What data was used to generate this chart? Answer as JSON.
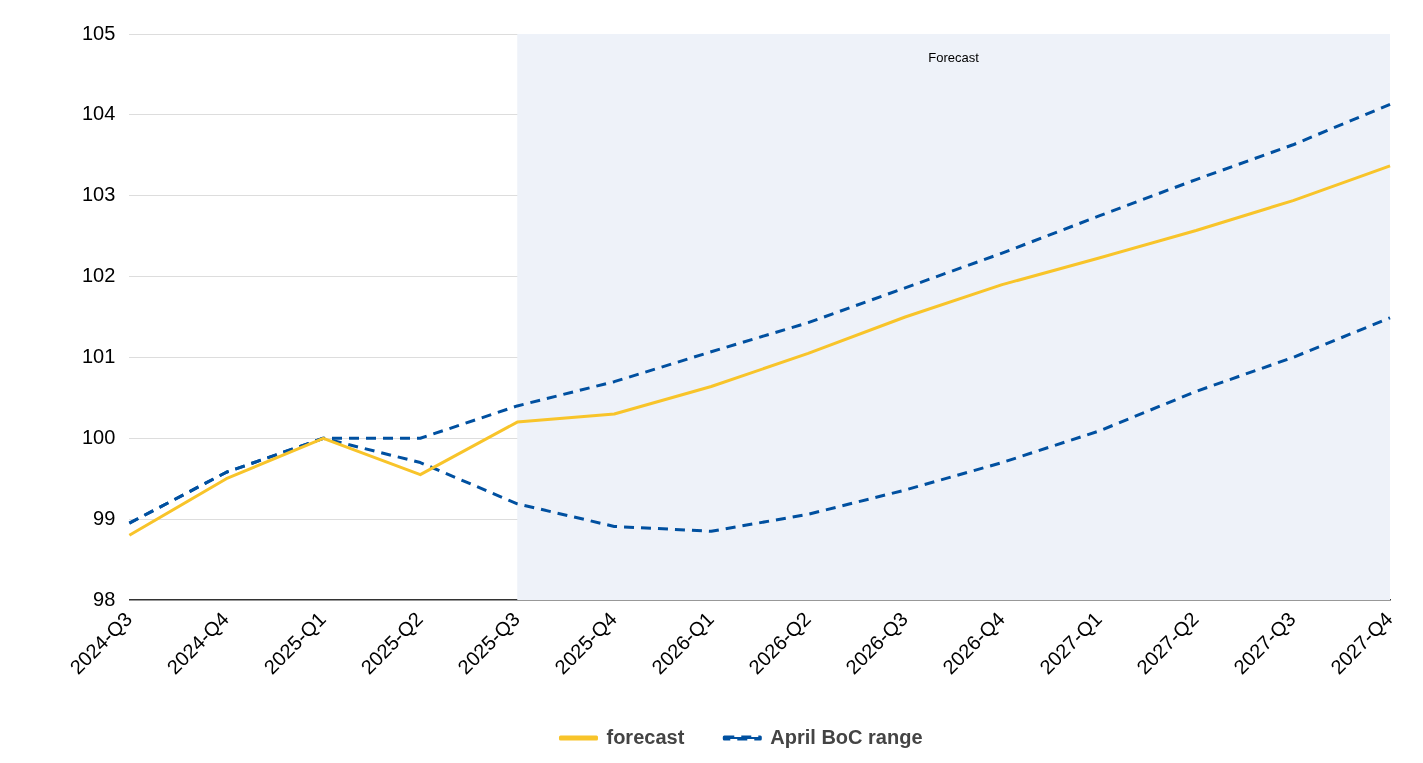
{
  "chart_data": {
    "type": "line",
    "categories": [
      "2024-Q3",
      "2024-Q4",
      "2025-Q1",
      "2025-Q2",
      "2025-Q3",
      "2025-Q4",
      "2026-Q1",
      "2026-Q2",
      "2026-Q3",
      "2026-Q4",
      "2027-Q1",
      "2027-Q2",
      "2027-Q3",
      "2027-Q4"
    ],
    "series": [
      {
        "name": "forecast",
        "color": "#f8c42a",
        "line_style": "solid",
        "values": [
          98.8,
          99.5,
          100.0,
          99.55,
          100.2,
          100.3,
          100.64,
          101.05,
          101.5,
          101.9,
          102.23,
          102.57,
          102.94,
          103.37
        ]
      },
      {
        "name": "April BoC range",
        "color": "#0050a0",
        "line_style": "dashed",
        "values": [
          98.95,
          99.58,
          100.0,
          100.0,
          100.4,
          100.7,
          101.07,
          101.43,
          101.86,
          102.29,
          102.75,
          103.2,
          103.63,
          104.13
        ]
      },
      {
        "color": "#0050a0",
        "line_style": "dashed",
        "values": [
          98.95,
          99.58,
          100.0,
          99.7,
          99.19,
          98.91,
          98.85,
          99.06,
          99.36,
          99.7,
          100.09,
          100.58,
          101.0,
          101.49
        ]
      }
    ],
    "ylim": [
      98,
      105
    ],
    "yticks": [
      98,
      99,
      100,
      101,
      102,
      103,
      104,
      105
    ],
    "grid": "y",
    "legend": "bottom",
    "marker": "none",
    "bands": [
      {
        "axis": "x",
        "from": "2025-Q3",
        "to": "2027-Q4",
        "label": "Forecast",
        "color": "#eef2f9"
      }
    ]
  }
}
